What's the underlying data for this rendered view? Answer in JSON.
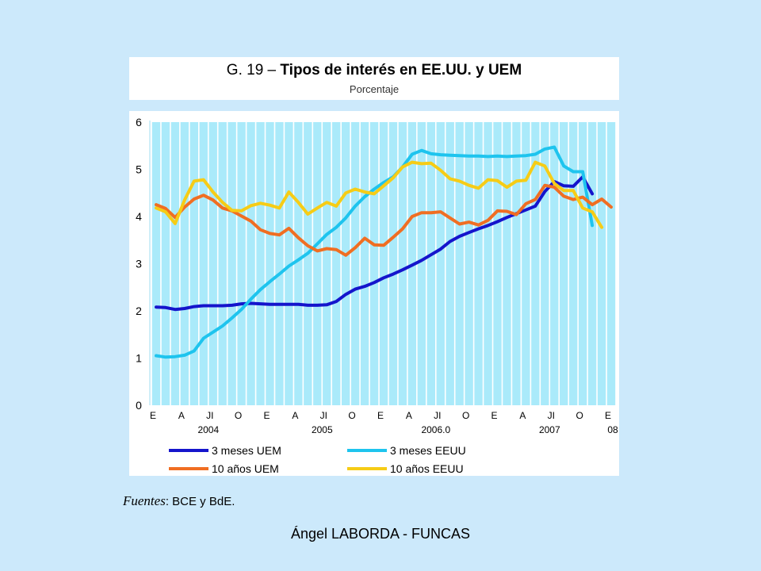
{
  "title_prefix": "G. 19 – ",
  "title_main": "Tipos de interés en EE.UU. y UEM",
  "subtitle": "Porcentaje",
  "source_label": "Fuentes",
  "source_text": ": BCE y BdE.",
  "footer": "Ángel LABORDA - FUNCAS",
  "chart_data": {
    "type": "line",
    "ylim": [
      0,
      6
    ],
    "yticks": [
      0,
      1,
      2,
      3,
      4,
      5,
      6
    ],
    "month_labels": [
      "E",
      "A",
      "JI",
      "O",
      "E",
      "A",
      "JI",
      "O",
      "E",
      "A",
      "JI",
      "O",
      "E",
      "A",
      "JI",
      "O",
      "E"
    ],
    "year_labels": [
      "2004",
      "2005",
      "2006.0",
      "2007",
      "08"
    ],
    "grid": "vertical bars",
    "legend_position": "bottom",
    "x_months": 49,
    "series": [
      {
        "name": "3 meses UEM",
        "color": "#1515cc",
        "values": [
          2.08,
          2.07,
          2.03,
          2.05,
          2.09,
          2.11,
          2.11,
          2.11,
          2.12,
          2.15,
          2.16,
          2.15,
          2.14,
          2.14,
          2.14,
          2.14,
          2.12,
          2.12,
          2.13,
          2.2,
          2.35,
          2.46,
          2.52,
          2.6,
          2.7,
          2.78,
          2.87,
          2.97,
          3.07,
          3.19,
          3.31,
          3.47,
          3.58,
          3.66,
          3.74,
          3.81,
          3.89,
          3.98,
          4.06,
          4.14,
          4.22,
          4.53,
          4.74,
          4.65,
          4.64,
          4.84,
          4.48
        ]
      },
      {
        "name": "3 meses EEUU",
        "color": "#1ec4ee",
        "values": [
          1.05,
          1.02,
          1.03,
          1.06,
          1.15,
          1.42,
          1.55,
          1.68,
          1.85,
          2.03,
          2.25,
          2.45,
          2.62,
          2.78,
          2.95,
          3.08,
          3.22,
          3.42,
          3.62,
          3.77,
          3.97,
          4.22,
          4.42,
          4.58,
          4.72,
          4.84,
          5.05,
          5.32,
          5.4,
          5.33,
          5.31,
          5.3,
          5.29,
          5.28,
          5.28,
          5.27,
          5.28,
          5.27,
          5.28,
          5.29,
          5.32,
          5.43,
          5.47,
          5.07,
          4.95,
          4.95,
          3.81
        ]
      },
      {
        "name": "10 años UEM",
        "color": "#f06e22",
        "values": [
          4.25,
          4.17,
          3.98,
          4.2,
          4.37,
          4.45,
          4.35,
          4.18,
          4.12,
          4.01,
          3.9,
          3.72,
          3.64,
          3.61,
          3.75,
          3.55,
          3.38,
          3.27,
          3.32,
          3.3,
          3.18,
          3.34,
          3.54,
          3.4,
          3.39,
          3.56,
          3.74,
          4.0,
          4.08,
          4.08,
          4.1,
          3.97,
          3.84,
          3.88,
          3.82,
          3.92,
          4.12,
          4.11,
          4.04,
          4.27,
          4.36,
          4.66,
          4.62,
          4.43,
          4.36,
          4.41,
          4.25,
          4.37,
          4.2
        ]
      },
      {
        "name": "10 años EEUU",
        "color": "#f6cc16",
        "values": [
          4.18,
          4.1,
          3.85,
          4.35,
          4.75,
          4.78,
          4.52,
          4.3,
          4.13,
          4.12,
          4.23,
          4.28,
          4.24,
          4.18,
          4.52,
          4.3,
          4.05,
          4.18,
          4.3,
          4.22,
          4.5,
          4.58,
          4.52,
          4.48,
          4.65,
          4.82,
          5.05,
          5.15,
          5.12,
          5.13,
          4.98,
          4.8,
          4.75,
          4.66,
          4.6,
          4.78,
          4.76,
          4.62,
          4.75,
          4.77,
          5.15,
          5.07,
          4.7,
          4.55,
          4.55,
          4.18,
          4.1,
          3.77
        ]
      }
    ]
  }
}
